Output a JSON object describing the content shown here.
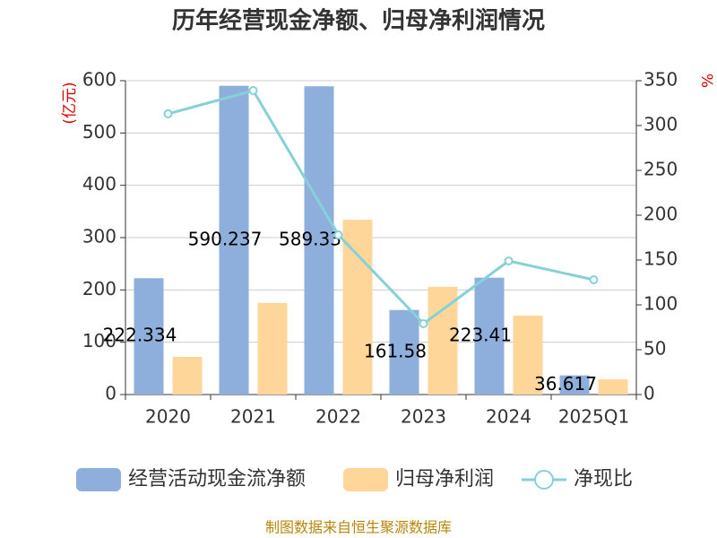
{
  "chart_data": {
    "type": "bar_line",
    "title": "历年经营现金净额、归母净利润情况",
    "y_label": "(亿元)",
    "y2_label": "%",
    "source": "制图数据来自恒生聚源数据库",
    "categories": [
      "2020",
      "2021",
      "2022",
      "2023",
      "2024",
      "2025Q1"
    ],
    "series": [
      {
        "name": "经营活动现金流净额",
        "type": "bar",
        "color": "#8eaedb",
        "values": [
          222.334,
          590.237,
          589.33,
          161.58,
          223.41,
          36.617
        ]
      },
      {
        "name": "归母净利润",
        "type": "bar",
        "color": "#ffd699",
        "values": [
          72,
          175,
          334,
          206,
          151,
          29
        ]
      },
      {
        "name": "净现比",
        "type": "line",
        "axis": "y2",
        "color": "#86d1d8",
        "values": [
          313,
          339,
          178,
          79,
          149,
          128
        ]
      }
    ],
    "ylim": [
      0,
      600
    ],
    "yticks": [
      0,
      100,
      200,
      300,
      400,
      500,
      600
    ],
    "y2lim": [
      0,
      350
    ],
    "y2ticks": [
      0,
      50,
      100,
      150,
      200,
      250,
      300,
      350
    ],
    "grid": true,
    "legend": "bottom"
  }
}
